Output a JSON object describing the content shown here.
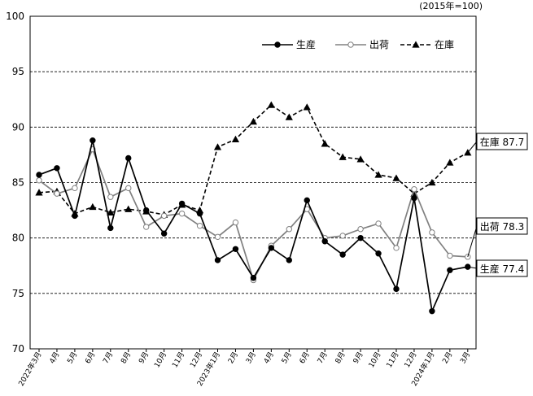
{
  "chart_data": {
    "type": "line",
    "unit_note": "(2015年=100)",
    "ylim": [
      70,
      100
    ],
    "yticks": [
      70,
      75,
      80,
      85,
      90,
      95,
      100
    ],
    "grid": "dashed horizontal",
    "legend_position": "top-right",
    "categories": [
      "2022年3月",
      "4月",
      "5月",
      "6月",
      "7月",
      "8月",
      "9月",
      "10月",
      "11月",
      "12月",
      "2023年1月",
      "2月",
      "3月",
      "4月",
      "5月",
      "6月",
      "7月",
      "8月",
      "9月",
      "10月",
      "11月",
      "12月",
      "2024年1月",
      "2月",
      "3月"
    ],
    "series": [
      {
        "name": "生産",
        "color": "#000000",
        "style": "solid",
        "marker": "filled-circle",
        "values": [
          85.7,
          86.3,
          82.0,
          88.8,
          80.9,
          87.2,
          82.5,
          80.4,
          83.1,
          82.2,
          78.0,
          79.0,
          76.4,
          79.1,
          78.0,
          83.4,
          79.7,
          78.5,
          80.0,
          78.6,
          75.4,
          83.6,
          73.4,
          77.1,
          77.4
        ],
        "end_label": "生産 77.4"
      },
      {
        "name": "出荷",
        "color": "#808080",
        "style": "solid",
        "marker": "open-circle",
        "values": [
          85.2,
          84.0,
          84.5,
          88.0,
          83.7,
          84.5,
          81.0,
          82.0,
          82.2,
          81.1,
          80.1,
          81.4,
          76.2,
          79.3,
          80.8,
          82.6,
          80.0,
          80.2,
          80.8,
          81.3,
          79.1,
          84.4,
          80.5,
          78.4,
          78.3
        ],
        "end_label": "出荷 78.3"
      },
      {
        "name": "在庫",
        "color": "#000000",
        "style": "dashed",
        "marker": "filled-triangle",
        "values": [
          84.1,
          84.2,
          82.2,
          82.8,
          82.3,
          82.6,
          82.4,
          82.1,
          83.0,
          82.5,
          88.2,
          88.9,
          90.5,
          92.0,
          90.9,
          91.8,
          88.5,
          87.3,
          87.1,
          85.7,
          85.4,
          84.0,
          85.0,
          86.8,
          87.7
        ],
        "end_label": "在庫 87.7"
      }
    ]
  }
}
